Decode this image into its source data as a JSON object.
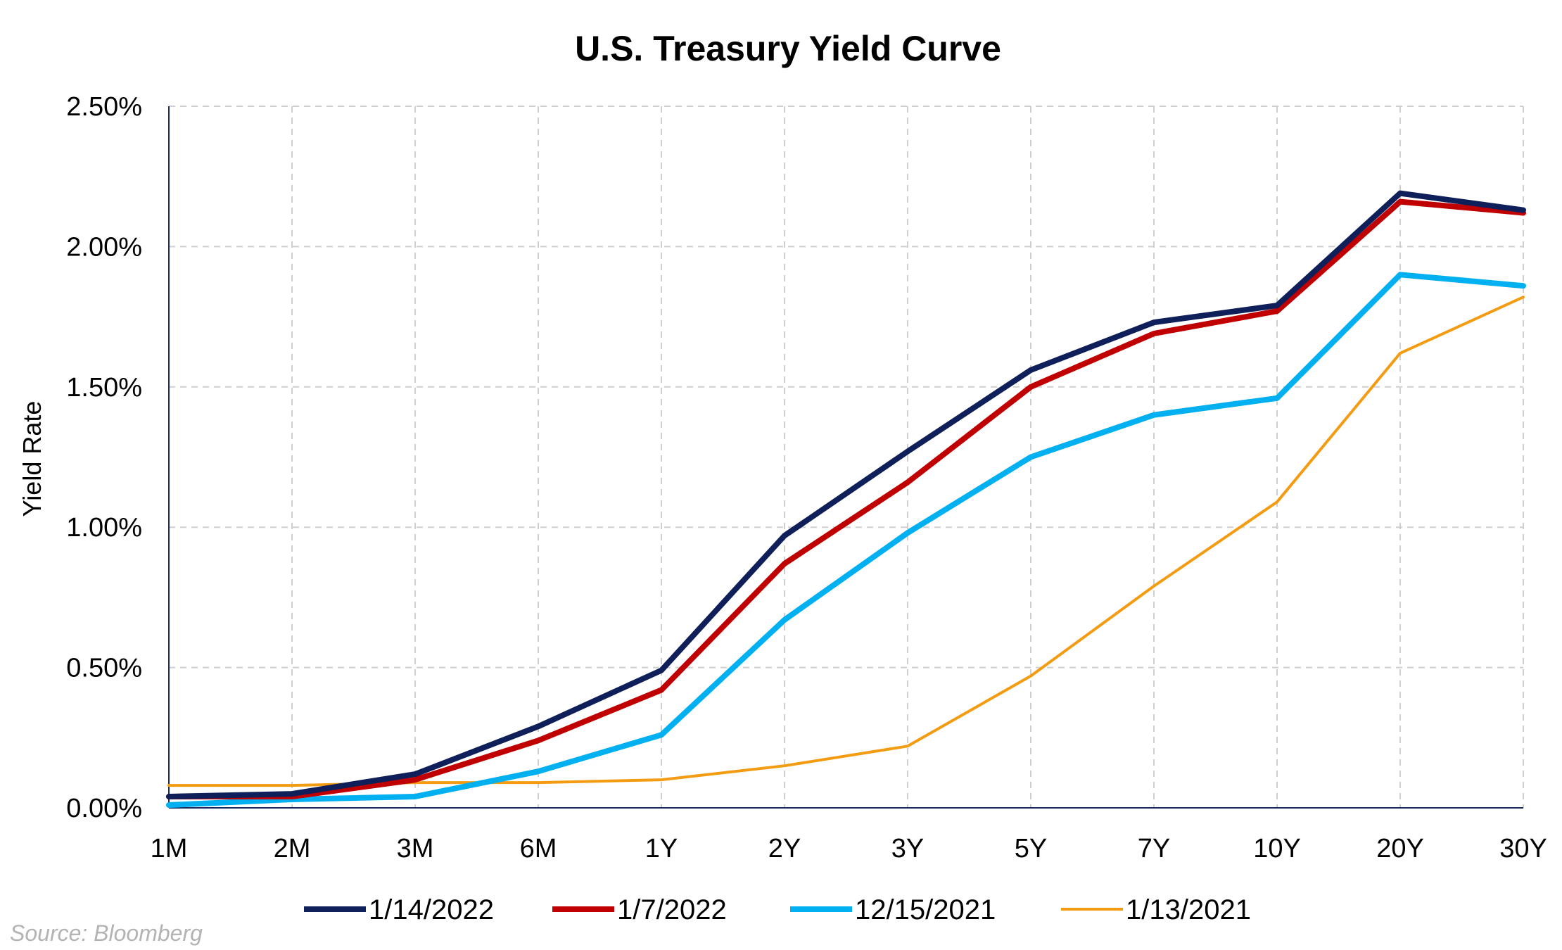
{
  "chart_data": {
    "type": "line",
    "title": "U.S. Treasury Yield Curve",
    "xlabel": "",
    "ylabel": "Yield Rate",
    "categories": [
      "1M",
      "2M",
      "3M",
      "6M",
      "1Y",
      "2Y",
      "3Y",
      "5Y",
      "7Y",
      "10Y",
      "20Y",
      "30Y"
    ],
    "y_ticks": [
      "0.00%",
      "0.50%",
      "1.00%",
      "1.50%",
      "2.00%",
      "2.50%"
    ],
    "ylim": [
      0,
      2.5
    ],
    "grid": true,
    "legend_position": "bottom",
    "series": [
      {
        "name": "1/14/2022",
        "color": "#0f1f5a",
        "line_width": "thick",
        "values": [
          0.04,
          0.05,
          0.12,
          0.29,
          0.49,
          0.97,
          1.27,
          1.56,
          1.73,
          1.79,
          2.19,
          2.13
        ]
      },
      {
        "name": "1/7/2022",
        "color": "#c00000",
        "line_width": "thick",
        "values": [
          0.04,
          0.04,
          0.1,
          0.24,
          0.42,
          0.87,
          1.16,
          1.5,
          1.69,
          1.77,
          2.16,
          2.12
        ]
      },
      {
        "name": "12/15/2021",
        "color": "#00b0f0",
        "line_width": "thick",
        "values": [
          0.01,
          0.03,
          0.04,
          0.13,
          0.26,
          0.67,
          0.98,
          1.25,
          1.4,
          1.46,
          1.9,
          1.86
        ]
      },
      {
        "name": "1/13/2021",
        "color": "#f39c12",
        "line_width": "thin",
        "values": [
          0.08,
          0.08,
          0.09,
          0.09,
          0.1,
          0.15,
          0.22,
          0.47,
          0.79,
          1.09,
          1.62,
          1.82
        ]
      }
    ]
  },
  "source": "Source: Bloomberg"
}
